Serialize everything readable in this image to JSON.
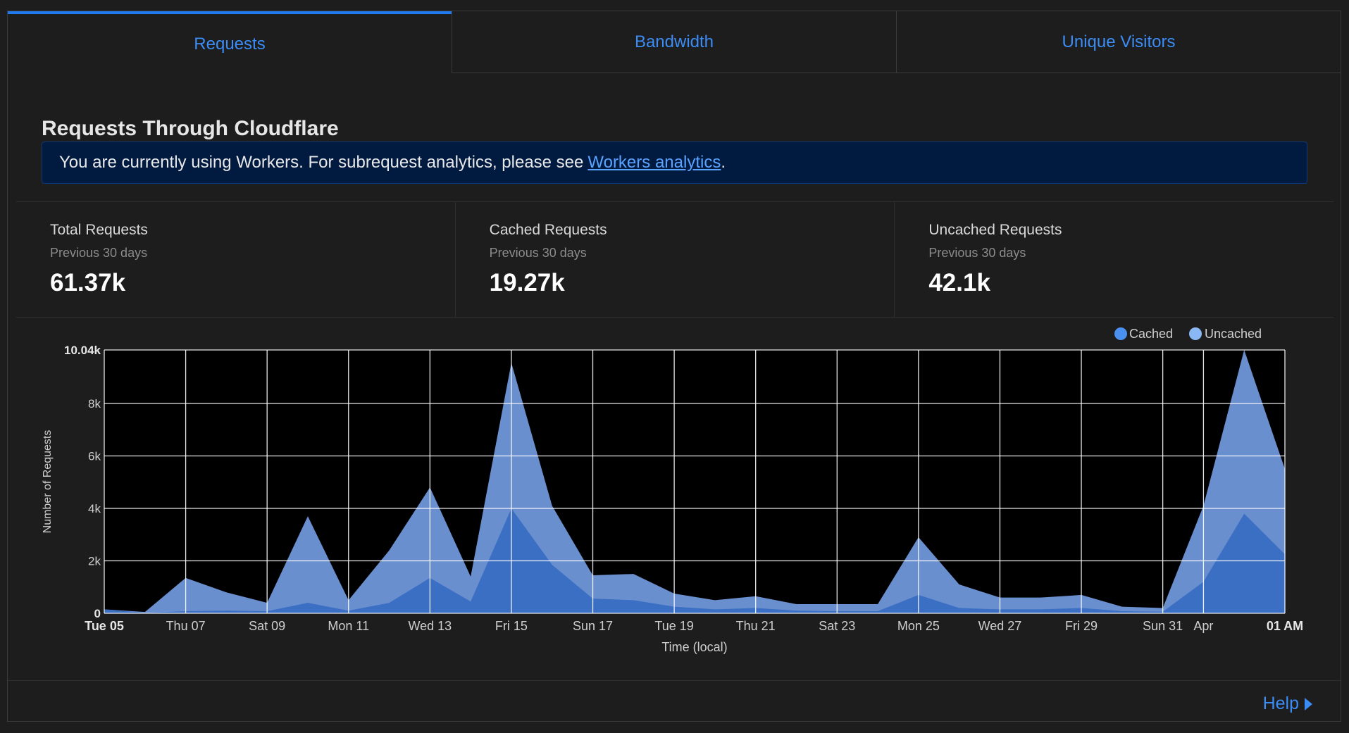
{
  "tabs": [
    {
      "label": "Requests",
      "active": true
    },
    {
      "label": "Bandwidth",
      "active": false
    },
    {
      "label": "Unique Visitors",
      "active": false
    }
  ],
  "section": {
    "title": "Requests Through Cloudflare"
  },
  "banner": {
    "text": "You are currently using Workers. For subrequest analytics, please see",
    "link_text": "Workers analytics",
    "suffix": "."
  },
  "stats": [
    {
      "label": "Total Requests",
      "period": "Previous 30 days",
      "value": "61.37k"
    },
    {
      "label": "Cached Requests",
      "period": "Previous 30 days",
      "value": "19.27k"
    },
    {
      "label": "Uncached Requests",
      "period": "Previous 30 days",
      "value": "42.1k"
    }
  ],
  "help": {
    "label": "Help"
  },
  "colors": {
    "cached": "#3b6fc4",
    "uncached": "#6a8fcf",
    "legend_cached": "#4a90ee",
    "legend_uncached": "#8ab8f5",
    "link": "#3b8cf5"
  },
  "chart_data": {
    "type": "area",
    "stacked": true,
    "xlabel": "Time (local)",
    "ylabel": "Number of Requests",
    "ylim": [
      0,
      10040
    ],
    "yticks": [
      {
        "value": 0,
        "label": "0"
      },
      {
        "value": 2000,
        "label": "2k"
      },
      {
        "value": 4000,
        "label": "4k"
      },
      {
        "value": 6000,
        "label": "6k"
      },
      {
        "value": 8000,
        "label": "8k"
      },
      {
        "value": 10040,
        "label": "10.04k"
      }
    ],
    "xticks": [
      {
        "index": 0,
        "label": "Tue 05",
        "bold": true
      },
      {
        "index": 2,
        "label": "Thu 07",
        "bold": false
      },
      {
        "index": 4,
        "label": "Sat 09",
        "bold": false
      },
      {
        "index": 6,
        "label": "Mon 11",
        "bold": false
      },
      {
        "index": 8,
        "label": "Wed 13",
        "bold": false
      },
      {
        "index": 10,
        "label": "Fri 15",
        "bold": false
      },
      {
        "index": 12,
        "label": "Sun 17",
        "bold": false
      },
      {
        "index": 14,
        "label": "Tue 19",
        "bold": false
      },
      {
        "index": 16,
        "label": "Thu 21",
        "bold": false
      },
      {
        "index": 18,
        "label": "Sat 23",
        "bold": false
      },
      {
        "index": 20,
        "label": "Mon 25",
        "bold": false
      },
      {
        "index": 22,
        "label": "Wed 27",
        "bold": false
      },
      {
        "index": 24,
        "label": "Fri 29",
        "bold": false
      },
      {
        "index": 26,
        "label": "Sun 31",
        "bold": false
      },
      {
        "index": 27,
        "label": "Apr",
        "bold": false
      },
      {
        "index": 29,
        "label": "01 AM",
        "bold": true
      }
    ],
    "legend": [
      "Cached",
      "Uncached"
    ],
    "legend_position": "top-right",
    "grid": true,
    "x": [
      "Tue 05",
      "Wed 06",
      "Thu 07",
      "Fri 08",
      "Sat 09",
      "Sun 10",
      "Mon 11",
      "Tue 12",
      "Wed 13",
      "Thu 14",
      "Fri 15",
      "Sat 16",
      "Sun 17",
      "Mon 18",
      "Tue 19",
      "Wed 20",
      "Thu 21",
      "Fri 22",
      "Sat 23",
      "Sun 24",
      "Mon 25",
      "Tue 26",
      "Wed 27",
      "Thu 28",
      "Fri 29",
      "Sat 30",
      "Sun 31",
      "Mon 01",
      "Tue 02",
      "01 AM"
    ],
    "series": [
      {
        "name": "Cached",
        "values": [
          150,
          20,
          80,
          100,
          80,
          400,
          100,
          400,
          1350,
          450,
          4000,
          1850,
          560,
          500,
          250,
          150,
          200,
          100,
          80,
          80,
          700,
          200,
          150,
          150,
          200,
          80,
          60,
          1200,
          3800,
          2250
        ]
      },
      {
        "name": "Uncached",
        "values": [
          0,
          30,
          1270,
          700,
          320,
          3300,
          400,
          2000,
          3450,
          950,
          5550,
          2250,
          890,
          1000,
          500,
          350,
          450,
          250,
          270,
          270,
          2200,
          900,
          450,
          450,
          500,
          170,
          140,
          2900,
          6240,
          3250
        ]
      }
    ]
  }
}
